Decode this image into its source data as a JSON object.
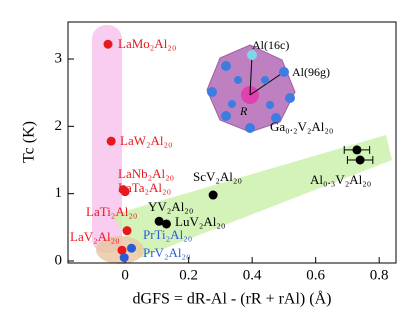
{
  "chart_data": {
    "type": "scatter",
    "xlabel": "dGFS = dR-Al - (rR + rAl) (Å)",
    "ylabel": "Tc (K)",
    "xlim": [
      -0.18,
      0.853
    ],
    "ylim": [
      -0.03,
      3.55
    ],
    "xticks": [
      0,
      0.2,
      0.4,
      0.6,
      0.8
    ],
    "yticks": [
      0,
      1,
      2,
      3
    ],
    "annotations": [
      "Al(16c)",
      "Al(96g)",
      "R"
    ],
    "series": [
      {
        "color": "#e8191e",
        "x": [
          -0.054,
          -0.044,
          -0.006,
          0,
          0.006,
          -0.01
        ],
        "values": [
          3.22,
          1.78,
          1.06,
          1.03,
          0.45,
          0.16
        ],
        "labels": [
          "LaMo₂Al₂₀",
          "LaW₂Al₂₀",
          "LaNb₂Al₂₀",
          "LaTa₂Al₂₀",
          "LaTi₂Al₂₀",
          "LaV₂Al₂₀"
        ]
      },
      {
        "color": "#2a5bd7",
        "x": [
          0.02,
          -0.003
        ],
        "values": [
          0.19,
          0.05
        ],
        "labels": [
          "PrTi₂Al₂₀",
          "PrV₂Al₂₀"
        ]
      },
      {
        "color": "#000000",
        "x": [
          0.277,
          0.107,
          0.13
        ],
        "values": [
          0.98,
          0.59,
          0.55
        ],
        "labels": [
          "ScV₂Al₂₀",
          "YV₂Al₂₀",
          "LuV₂Al₂₀"
        ]
      },
      {
        "color": "#000000",
        "x": [
          0.73,
          0.74
        ],
        "values": [
          1.65,
          1.5
        ],
        "xerr": [
          0.04,
          0.04
        ],
        "labels": [
          "Ga₀.₂V₂Al₂₀",
          "Al₀.₃V₂Al₂₀"
        ]
      }
    ]
  }
}
